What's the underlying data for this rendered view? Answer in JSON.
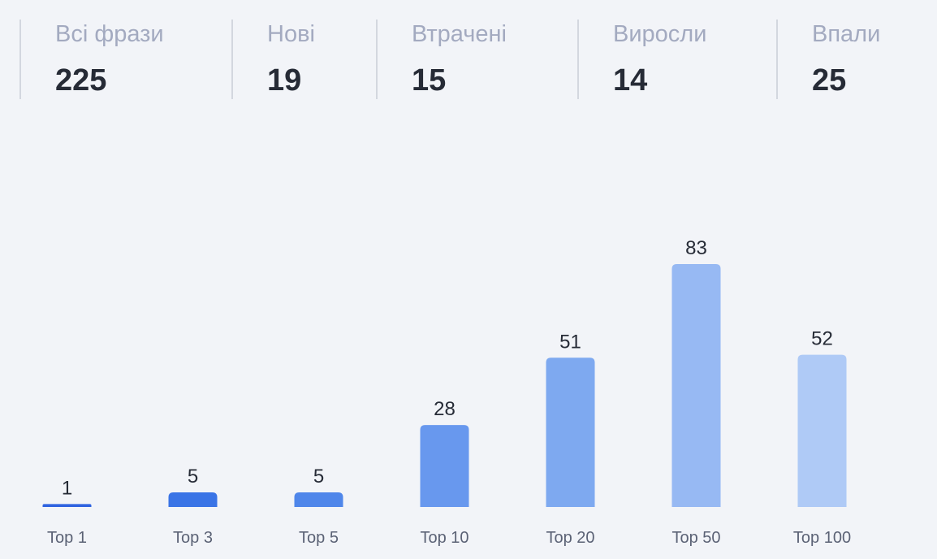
{
  "stats": [
    {
      "label": "Всі фрази",
      "value": "225"
    },
    {
      "label": "Нові",
      "value": "19"
    },
    {
      "label": "Втрачені",
      "value": "15"
    },
    {
      "label": "Виросли",
      "value": "14"
    },
    {
      "label": "Впали",
      "value": "25"
    }
  ],
  "chart_data": {
    "type": "bar",
    "categories": [
      "Top 1",
      "Top 3",
      "Top 5",
      "Top 10",
      "Top 20",
      "Top 50",
      "Top 100"
    ],
    "values": [
      1,
      5,
      5,
      28,
      51,
      83,
      52
    ],
    "colors": [
      "#2f63e0",
      "#3a74e6",
      "#4f86ea",
      "#6898ee",
      "#7ea9f0",
      "#97b9f3",
      "#afcaf6"
    ],
    "title": "",
    "xlabel": "",
    "ylabel": "",
    "ylim": [
      0,
      83
    ],
    "grid": false,
    "data_labels": true
  }
}
